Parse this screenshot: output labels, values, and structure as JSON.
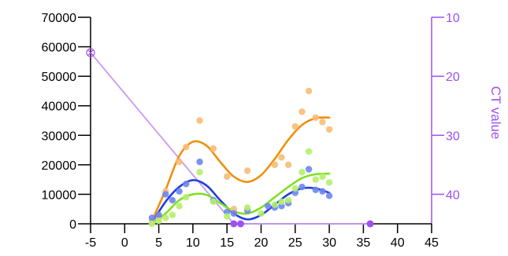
{
  "chart_data": {
    "type": "scatter",
    "title": "",
    "xlabel": "",
    "ylabel": "",
    "y2label": "CT value",
    "xlim": [
      -5,
      45
    ],
    "ylim": [
      0,
      70000
    ],
    "y2lim": [
      10,
      45
    ],
    "y2_inverted": true,
    "x_ticks": [
      -5,
      0,
      5,
      10,
      15,
      20,
      25,
      30,
      35,
      40,
      45
    ],
    "y_ticks": [
      0,
      10000,
      20000,
      30000,
      40000,
      50000,
      60000,
      70000
    ],
    "y2_ticks": [
      10,
      20,
      30,
      40
    ],
    "grid": false,
    "legend": "none",
    "colors": {
      "orange": "#f0900c",
      "orange_points": "#f7bd76",
      "blue": "#1f3fe0",
      "blue_points": "#6d86ee",
      "green": "#80e020",
      "green_points": "#b4ef6a",
      "ct": "#a050f0",
      "ct_line": "#c89af6"
    },
    "series": [
      {
        "axis": "left",
        "color": "orange",
        "points": [
          [
            4,
            1000
          ],
          [
            5,
            2000
          ],
          [
            6,
            11000
          ],
          [
            8,
            21000
          ],
          [
            9,
            26000
          ],
          [
            11,
            35000
          ],
          [
            13,
            25500
          ],
          [
            15,
            16000
          ],
          [
            16,
            5000
          ],
          [
            18,
            18000
          ],
          [
            22,
            20000
          ],
          [
            23,
            22500
          ],
          [
            24,
            20000
          ],
          [
            25,
            33000
          ],
          [
            26,
            38000
          ],
          [
            27,
            45000
          ],
          [
            28,
            36000
          ],
          [
            29,
            34500
          ],
          [
            30,
            32000
          ]
        ],
        "fit": [
          [
            4,
            1000
          ],
          [
            6,
            11500
          ],
          [
            8,
            23000
          ],
          [
            10,
            27800
          ],
          [
            12,
            26500
          ],
          [
            14,
            21000
          ],
          [
            16,
            16000
          ],
          [
            18,
            14200
          ],
          [
            20,
            16500
          ],
          [
            22,
            22000
          ],
          [
            24,
            28500
          ],
          [
            26,
            33500
          ],
          [
            28,
            35800
          ],
          [
            30,
            36000
          ]
        ]
      },
      {
        "axis": "left",
        "color": "blue",
        "points": [
          [
            4,
            2000
          ],
          [
            5,
            3000
          ],
          [
            6,
            10000
          ],
          [
            7,
            8000
          ],
          [
            8,
            11000
          ],
          [
            9,
            13500
          ],
          [
            11,
            21000
          ],
          [
            13,
            8000
          ],
          [
            15,
            4000
          ],
          [
            16,
            3500
          ],
          [
            18,
            4500
          ],
          [
            21,
            6000
          ],
          [
            22,
            5500
          ],
          [
            23,
            6000
          ],
          [
            24,
            7000
          ],
          [
            25,
            10500
          ],
          [
            26,
            12500
          ],
          [
            27,
            18500
          ],
          [
            28,
            11500
          ],
          [
            29,
            11000
          ],
          [
            30,
            9500
          ]
        ],
        "fit": [
          [
            4,
            300
          ],
          [
            6,
            7500
          ],
          [
            8,
            12500
          ],
          [
            10,
            14800
          ],
          [
            12,
            13000
          ],
          [
            14,
            8000
          ],
          [
            16,
            3500
          ],
          [
            18,
            1500
          ],
          [
            20,
            3000
          ],
          [
            22,
            6500
          ],
          [
            24,
            10000
          ],
          [
            26,
            12000
          ],
          [
            28,
            12000
          ],
          [
            30,
            10500
          ]
        ]
      },
      {
        "axis": "left",
        "color": "green",
        "points": [
          [
            4,
            0
          ],
          [
            5,
            1000
          ],
          [
            6,
            2000
          ],
          [
            7,
            3000
          ],
          [
            8,
            6000
          ],
          [
            9,
            9000
          ],
          [
            11,
            17500
          ],
          [
            13,
            7500
          ],
          [
            15,
            2500
          ],
          [
            18,
            5500
          ],
          [
            20,
            3500
          ],
          [
            22,
            6500
          ],
          [
            23,
            7500
          ],
          [
            24,
            8000
          ],
          [
            25,
            12000
          ],
          [
            26,
            17500
          ],
          [
            27,
            24500
          ],
          [
            28,
            15000
          ],
          [
            29,
            16000
          ],
          [
            30,
            14000
          ]
        ],
        "fit": [
          [
            4,
            0
          ],
          [
            6,
            3500
          ],
          [
            8,
            8000
          ],
          [
            10,
            10000
          ],
          [
            12,
            9800
          ],
          [
            14,
            7000
          ],
          [
            16,
            4200
          ],
          [
            18,
            3500
          ],
          [
            20,
            5500
          ],
          [
            22,
            9000
          ],
          [
            24,
            12500
          ],
          [
            26,
            15500
          ],
          [
            28,
            16800
          ],
          [
            30,
            17000
          ]
        ]
      }
    ],
    "ct_series": {
      "axis": "right",
      "color": "ct",
      "points": [
        [
          -5,
          16
        ],
        [
          16,
          45
        ],
        [
          17,
          45
        ],
        [
          36,
          45
        ]
      ],
      "line": [
        [
          -5,
          16
        ],
        [
          16,
          45
        ],
        [
          36,
          45
        ]
      ]
    }
  }
}
